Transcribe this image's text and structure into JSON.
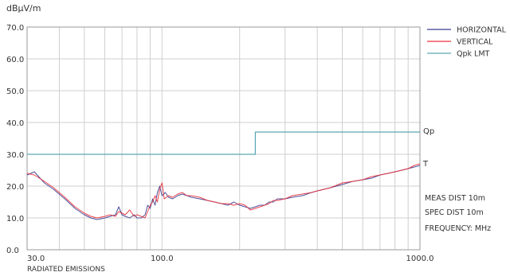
{
  "chart_data": {
    "type": "line",
    "title": "RADIATED EMISSIONS",
    "ylabel": "dBµV/m",
    "y_unit_note": "FREQUENCY: MHz",
    "xscale": "log",
    "xlim": [
      30,
      1000
    ],
    "ylim": [
      0,
      70
    ],
    "grid": true,
    "legend_position": "top-right",
    "y_ticks": [
      {
        "v": 0,
        "label": "0.0"
      },
      {
        "v": 10,
        "label": "10.0"
      },
      {
        "v": 20,
        "label": "20.0"
      },
      {
        "v": 30,
        "label": "30.0"
      },
      {
        "v": 40,
        "label": "40.0"
      },
      {
        "v": 50,
        "label": "50.0"
      },
      {
        "v": 60,
        "label": "60.0"
      },
      {
        "v": 70,
        "label": "70.0"
      }
    ],
    "x_ticks": [
      {
        "v": 30,
        "label": "30.0"
      },
      {
        "v": 100,
        "label": "100.0"
      },
      {
        "v": 1000,
        "label": "1000.0"
      }
    ],
    "x_gridlines": [
      40,
      50,
      60,
      70,
      80,
      90,
      100,
      200,
      300,
      400,
      500,
      600,
      700,
      800,
      900
    ],
    "series": [
      {
        "name": "HORIZONTAL",
        "color": "#3b3d8f",
        "points": [
          [
            30,
            23.5
          ],
          [
            32,
            24.5
          ],
          [
            35,
            21
          ],
          [
            38,
            19
          ],
          [
            42,
            16
          ],
          [
            46,
            13
          ],
          [
            50,
            11
          ],
          [
            53,
            10
          ],
          [
            56,
            9.5
          ],
          [
            60,
            10
          ],
          [
            63,
            10.5
          ],
          [
            66,
            11
          ],
          [
            68,
            13.5
          ],
          [
            70,
            11
          ],
          [
            72,
            10.5
          ],
          [
            75,
            10
          ],
          [
            78,
            11
          ],
          [
            80,
            10
          ],
          [
            83,
            10
          ],
          [
            86,
            11
          ],
          [
            88,
            14
          ],
          [
            90,
            13
          ],
          [
            92,
            16
          ],
          [
            94,
            14
          ],
          [
            96,
            18
          ],
          [
            98,
            20
          ],
          [
            100,
            17
          ],
          [
            103,
            18
          ],
          [
            106,
            16.5
          ],
          [
            110,
            16
          ],
          [
            115,
            17
          ],
          [
            120,
            17.5
          ],
          [
            125,
            17
          ],
          [
            130,
            16.5
          ],
          [
            140,
            16
          ],
          [
            150,
            15.5
          ],
          [
            160,
            15
          ],
          [
            170,
            14.5
          ],
          [
            180,
            14
          ],
          [
            190,
            15
          ],
          [
            200,
            14
          ],
          [
            210,
            13.5
          ],
          [
            220,
            13
          ],
          [
            230,
            13.5
          ],
          [
            240,
            14
          ],
          [
            250,
            14
          ],
          [
            260,
            15
          ],
          [
            270,
            15
          ],
          [
            280,
            16
          ],
          [
            300,
            16
          ],
          [
            320,
            16.5
          ],
          [
            350,
            17
          ],
          [
            380,
            18
          ],
          [
            400,
            18.5
          ],
          [
            450,
            19.5
          ],
          [
            500,
            20.5
          ],
          [
            550,
            21.5
          ],
          [
            600,
            22
          ],
          [
            650,
            22.5
          ],
          [
            700,
            23.5
          ],
          [
            750,
            24
          ],
          [
            800,
            24.5
          ],
          [
            850,
            25
          ],
          [
            900,
            25.5
          ],
          [
            950,
            26
          ],
          [
            1000,
            26.5
          ]
        ]
      },
      {
        "name": "VERTICAL",
        "color": "#e8303c",
        "points": [
          [
            30,
            24
          ],
          [
            32,
            23.5
          ],
          [
            35,
            21.5
          ],
          [
            38,
            19.5
          ],
          [
            42,
            16.5
          ],
          [
            46,
            13.5
          ],
          [
            50,
            11.5
          ],
          [
            53,
            10.5
          ],
          [
            56,
            10
          ],
          [
            60,
            10.5
          ],
          [
            63,
            11
          ],
          [
            66,
            10.5
          ],
          [
            68,
            12
          ],
          [
            70,
            11.5
          ],
          [
            72,
            11
          ],
          [
            75,
            12.5
          ],
          [
            78,
            10.5
          ],
          [
            80,
            11
          ],
          [
            83,
            10.5
          ],
          [
            86,
            10
          ],
          [
            88,
            12
          ],
          [
            90,
            14
          ],
          [
            92,
            15
          ],
          [
            94,
            17
          ],
          [
            96,
            15
          ],
          [
            98,
            19
          ],
          [
            100,
            21
          ],
          [
            102,
            16
          ],
          [
            106,
            17
          ],
          [
            110,
            16.5
          ],
          [
            115,
            17.5
          ],
          [
            120,
            18
          ],
          [
            125,
            17
          ],
          [
            130,
            17
          ],
          [
            140,
            16.5
          ],
          [
            150,
            15.5
          ],
          [
            160,
            15
          ],
          [
            170,
            14.5
          ],
          [
            180,
            14.5
          ],
          [
            190,
            14
          ],
          [
            200,
            14.5
          ],
          [
            210,
            14
          ],
          [
            220,
            12.5
          ],
          [
            230,
            13
          ],
          [
            240,
            13.5
          ],
          [
            250,
            14
          ],
          [
            260,
            14.5
          ],
          [
            270,
            15.5
          ],
          [
            280,
            15.5
          ],
          [
            300,
            16
          ],
          [
            320,
            17
          ],
          [
            350,
            17.5
          ],
          [
            380,
            18
          ],
          [
            400,
            18.5
          ],
          [
            450,
            19.5
          ],
          [
            500,
            21
          ],
          [
            550,
            21.5
          ],
          [
            600,
            22
          ],
          [
            650,
            23
          ],
          [
            700,
            23.5
          ],
          [
            750,
            24
          ],
          [
            800,
            24.5
          ],
          [
            850,
            25
          ],
          [
            900,
            25.5
          ],
          [
            950,
            26.5
          ],
          [
            1000,
            27
          ]
        ]
      },
      {
        "name": "Qpk LMT",
        "color": "#5aa6b5",
        "step": true,
        "points": [
          [
            30,
            30
          ],
          [
            230,
            30
          ],
          [
            230,
            37
          ],
          [
            1000,
            37
          ]
        ]
      }
    ],
    "annotations": {
      "qp_label": "Qp",
      "t_label": "T",
      "meas_dist": "MEAS DIST 10m",
      "spec_dist": "SPEC DIST 10m",
      "frequency": "FREQUENCY: MHz"
    }
  }
}
